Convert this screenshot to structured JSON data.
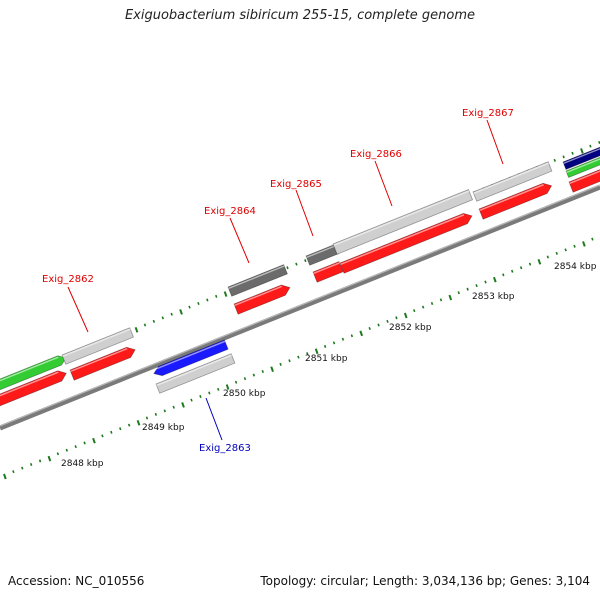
{
  "header": {
    "title": "Exiguobacterium sibiricum 255-15, complete genome"
  },
  "footer": {
    "accession": "Accession: NC_010556",
    "summary": "Topology: circular; Length: 3,034,136 bp; Genes: 3,104"
  },
  "colors": {
    "backbone": "#8f8f8f",
    "forward_cds": "#ff1a1a",
    "reverse_cds": "#1a1aff",
    "gene_light": "#cfcfcf",
    "gene_dark": "#6b6b6b",
    "green_feature": "#33cc33",
    "navy_feature": "#000080",
    "tick": "#1f7a1f",
    "label_forward": "#e00000",
    "label_reverse": "#0000c0"
  },
  "ruler": {
    "labels": [
      "2848 kbp",
      "2849 kbp",
      "2850 kbp",
      "2851 kbp",
      "2852 kbp",
      "2853 kbp",
      "2854 kbp"
    ]
  },
  "gene_labels": {
    "exig_2862": "Exig_2862",
    "exig_2863": "Exig_2863",
    "exig_2864": "Exig_2864",
    "exig_2865": "Exig_2865",
    "exig_2866": "Exig_2866",
    "exig_2867": "Exig_2867"
  }
}
